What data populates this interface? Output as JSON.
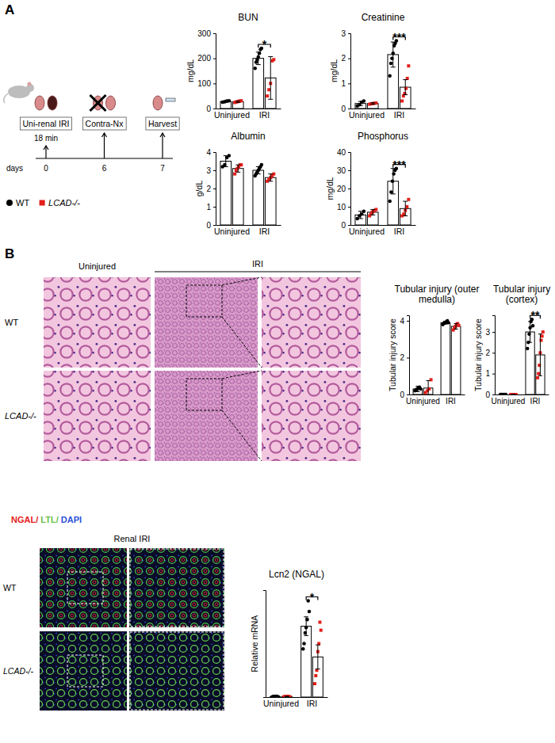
{
  "panel_labels": [
    "A",
    "B"
  ],
  "schematic": {
    "steps": [
      {
        "label": "Uni-renal IRI",
        "note": "18 min",
        "day": 0
      },
      {
        "label": "Contra-Nx",
        "day": 6
      },
      {
        "label": "Harvest",
        "day": 7
      }
    ],
    "time_label": "days"
  },
  "groups": [
    {
      "name": "WT",
      "color": "#000000",
      "marker": "circle"
    },
    {
      "name": "LCAD-/-",
      "color": "#e3201b",
      "marker": "square"
    }
  ],
  "histology": {
    "column_heads": [
      "Uninjured",
      "IRI"
    ],
    "row_labels": [
      "WT",
      "LCAD-/-"
    ]
  },
  "immunofluorescence": {
    "stain": [
      {
        "text": "NGAL/",
        "color": "#e3201b"
      },
      {
        "text": " LTL/",
        "color": "#6cc04a"
      },
      {
        "text": " DAPI",
        "color": "#2b50d8"
      }
    ],
    "title": "Renal IRI",
    "row_labels": [
      "WT",
      "LCAD-/-"
    ]
  },
  "chart_data": [
    {
      "type": "bar",
      "title": "BUN",
      "ylabel": "mg/dL",
      "categories": [
        "Uninjured",
        "IRI"
      ],
      "series": [
        {
          "color": "#000000",
          "marker": "circle",
          "values": [
            28,
            200
          ],
          "errors": [
            3,
            25
          ],
          "points": [
            [
              25,
              27,
              30,
              31
            ],
            [
              160,
              185,
              195,
              205,
              220,
              235,
              240
            ]
          ]
        },
        {
          "color": "#e3201b",
          "marker": "square",
          "values": [
            27,
            122
          ],
          "errors": [
            3,
            85
          ],
          "points": [
            [
              24,
              26,
              27,
              29,
              30,
              31
            ],
            [
              50,
              75,
              100,
              190,
              195
            ]
          ]
        }
      ],
      "ylim": [
        0,
        300
      ],
      "yticks": [
        0,
        100,
        200,
        300
      ],
      "annotations": [
        {
          "text": "*",
          "category": "IRI"
        }
      ]
    },
    {
      "type": "bar",
      "title": "Creatinine",
      "ylabel": "mg/dL",
      "categories": [
        "Uninjured",
        "IRI"
      ],
      "series": [
        {
          "color": "#000000",
          "marker": "circle",
          "values": [
            0.2,
            2.15
          ],
          "errors": [
            0.08,
            0.5
          ],
          "points": [
            [
              0.1,
              0.15,
              0.25,
              0.3
            ],
            [
              1.3,
              1.8,
              2.0,
              2.2,
              2.5,
              2.6,
              2.7
            ]
          ]
        },
        {
          "color": "#e3201b",
          "marker": "square",
          "values": [
            0.2,
            0.85
          ],
          "errors": [
            0.03,
            0.3
          ],
          "points": [
            [
              0.17,
              0.19,
              0.2,
              0.21,
              0.22
            ],
            [
              0.3,
              0.5,
              0.6,
              0.8,
              1.2,
              1.7
            ]
          ]
        }
      ],
      "ylim": [
        0,
        3
      ],
      "yticks": [
        0,
        1,
        2,
        3
      ],
      "annotations": [
        {
          "text": "***",
          "category": "IRI"
        }
      ]
    },
    {
      "type": "bar",
      "title": "Albumin",
      "ylabel": "g/dL",
      "categories": [
        "Uninjured",
        "IRI"
      ],
      "series": [
        {
          "color": "#000000",
          "marker": "circle",
          "values": [
            3.5,
            3.0
          ],
          "errors": [
            0.3,
            0.2
          ],
          "points": [
            [
              3.2,
              3.3,
              3.7,
              3.8
            ],
            [
              2.7,
              2.8,
              2.9,
              3.0,
              3.1,
              3.2,
              3.3
            ]
          ]
        },
        {
          "color": "#e3201b",
          "marker": "square",
          "values": [
            3.1,
            2.6
          ],
          "errors": [
            0.2,
            0.2
          ],
          "points": [
            [
              2.8,
              3.0,
              3.1,
              3.2,
              3.3,
              3.3
            ],
            [
              2.4,
              2.5,
              2.6,
              2.7,
              2.8
            ]
          ]
        }
      ],
      "ylim": [
        0,
        4
      ],
      "yticks": [
        0,
        1,
        2,
        3,
        4
      ]
    },
    {
      "type": "bar",
      "title": "Phosphorus",
      "ylabel": "mg/dL",
      "categories": [
        "Uninjured",
        "IRI"
      ],
      "series": [
        {
          "color": "#000000",
          "marker": "circle",
          "values": [
            5.5,
            24
          ],
          "errors": [
            2,
            7
          ],
          "points": [
            [
              3.5,
              5,
              6,
              7.5
            ],
            [
              13,
              18,
              24,
              28,
              30,
              31
            ]
          ]
        },
        {
          "color": "#e3201b",
          "marker": "square",
          "values": [
            7,
            9
          ],
          "errors": [
            1.5,
            4
          ],
          "points": [
            [
              5,
              6,
              7,
              7.5,
              8,
              8.5
            ],
            [
              5,
              6,
              8,
              10,
              14
            ]
          ]
        }
      ],
      "ylim": [
        0,
        40
      ],
      "yticks": [
        0,
        10,
        20,
        30,
        40
      ],
      "annotations": [
        {
          "text": "***",
          "category": "IRI"
        }
      ]
    },
    {
      "type": "bar",
      "title": "Tubular injury (outer medulla)",
      "ylabel": "Tubular injury score",
      "categories": [
        "Uninjured",
        "IRI"
      ],
      "series": [
        {
          "color": "#000000",
          "marker": "circle",
          "values": [
            0.3,
            3.9
          ],
          "errors": [
            0.15,
            0.08
          ],
          "points": [
            [
              0.2,
              0.25,
              0.3,
              0.35,
              0.4,
              0.3
            ],
            [
              3.8,
              3.85,
              3.9,
              3.9,
              3.95,
              4.0,
              3.9
            ]
          ]
        },
        {
          "color": "#e3201b",
          "marker": "square",
          "values": [
            0.35,
            3.7
          ],
          "errors": [
            0.4,
            0.15
          ],
          "points": [
            [
              0.1,
              0.2,
              0.3,
              0.8
            ],
            [
              3.5,
              3.6,
              3.7,
              3.8,
              3.85,
              3.75
            ]
          ]
        }
      ],
      "ylim": [
        0,
        4.3
      ],
      "yticks": [
        0,
        2,
        4
      ]
    },
    {
      "type": "bar",
      "title": "Tubular injury (cortex)",
      "ylabel": "Tubular injury score",
      "categories": [
        "Uninjured",
        "IRI"
      ],
      "series": [
        {
          "color": "#000000",
          "marker": "circle",
          "values": [
            0,
            3.0
          ],
          "errors": [
            0,
            0.5
          ],
          "points": [
            [
              0,
              0,
              0,
              0,
              0
            ],
            [
              2.2,
              2.5,
              2.9,
              3.2,
              3.5,
              3.6,
              3.3
            ]
          ]
        },
        {
          "color": "#e3201b",
          "marker": "square",
          "values": [
            0,
            1.9
          ],
          "errors": [
            0,
            1.0
          ],
          "points": [
            [
              0,
              0,
              0,
              0,
              0
            ],
            [
              0.8,
              1.0,
              1.4,
              2.0,
              2.6,
              2.8,
              3.0
            ]
          ]
        }
      ],
      "ylim": [
        0,
        3.8
      ],
      "yticks": [
        0,
        1,
        2,
        3
      ],
      "annotations": [
        {
          "text": "**",
          "category": "IRI"
        }
      ]
    },
    {
      "type": "bar",
      "title": "Lcn2 (NGAL)",
      "ylabel": "Relative mRNA",
      "categories": [
        "Uninjured",
        "IRI"
      ],
      "series": [
        {
          "color": "#000000",
          "marker": "circle",
          "values": [
            2,
            265
          ],
          "errors": [
            1,
            35
          ],
          "points": [
            [
              1,
              2,
              2,
              3,
              2,
              1
            ],
            [
              180,
              200,
              240,
              260,
              290,
              360,
              320
            ]
          ]
        },
        {
          "color": "#e3201b",
          "marker": "square",
          "values": [
            2,
            150
          ],
          "errors": [
            1,
            45
          ],
          "points": [
            [
              1,
              2,
              2,
              3,
              2,
              1
            ],
            [
              50,
              80,
              100,
              170,
              200,
              280,
              250
            ]
          ]
        }
      ],
      "ylim": [
        0,
        400
      ],
      "yticks": [],
      "tick_labels": "x",
      "annotations": [
        {
          "text": "*",
          "category": "IRI"
        }
      ]
    }
  ]
}
